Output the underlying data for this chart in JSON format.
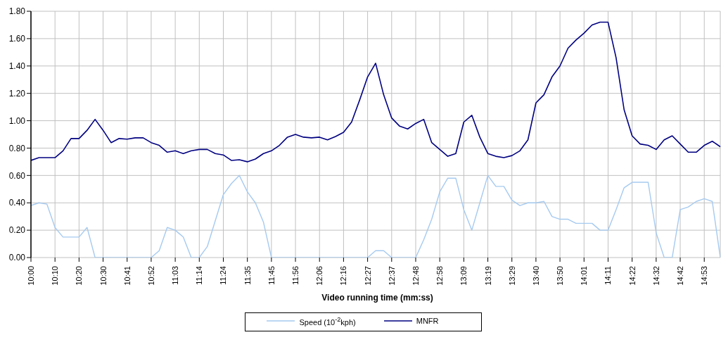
{
  "chart_data": {
    "type": "line",
    "xlabel": "Video running time (mm:ss)",
    "categories": [
      "10:00",
      null,
      null,
      "10:10",
      null,
      null,
      "10:20",
      null,
      null,
      "10:30",
      null,
      null,
      "10:41",
      null,
      null,
      "10:52",
      null,
      null,
      "11:03",
      null,
      null,
      "11:14",
      null,
      null,
      "11:24",
      null,
      null,
      "11:35",
      null,
      null,
      "11:45",
      null,
      null,
      "11:56",
      null,
      null,
      "12:06",
      null,
      null,
      "12:16",
      null,
      null,
      "12:27",
      null,
      null,
      "12:37",
      null,
      null,
      "12:48",
      null,
      null,
      "12:58",
      null,
      null,
      "13:09",
      null,
      null,
      "13:19",
      null,
      null,
      "13:29",
      null,
      null,
      "13:40",
      null,
      null,
      "13:50",
      null,
      null,
      "14:01",
      null,
      null,
      "14:11",
      null,
      null,
      "14:22",
      null,
      null,
      "14:32",
      null,
      null,
      "14:42",
      null,
      null,
      "14:53",
      null,
      null
    ],
    "series": [
      {
        "name": "Speed (10$^{-2}$kph)",
        "color": "#a6caf0",
        "values": [
          0.38,
          0.4,
          0.39,
          0.22,
          0.15,
          0.15,
          0.15,
          0.22,
          0,
          0,
          0,
          0,
          0,
          0,
          0,
          0,
          0.05,
          0.22,
          0.2,
          0.15,
          0,
          0,
          0.08,
          0.27,
          0.46,
          0.54,
          0.6,
          0.48,
          0.4,
          0.26,
          0,
          0,
          0,
          0,
          0,
          0,
          0,
          0,
          0,
          0,
          0,
          0,
          0,
          0.05,
          0.05,
          0,
          0,
          0,
          0,
          0.13,
          0.28,
          0.48,
          0.58,
          0.58,
          0.35,
          0.2,
          0.4,
          0.6,
          0.52,
          0.52,
          0.42,
          0.38,
          0.4,
          0.4,
          0.41,
          0.3,
          0.28,
          0.28,
          0.25,
          0.25,
          0.25,
          0.2,
          0.2,
          0.35,
          0.51,
          0.55,
          0.55,
          0.55,
          0.18,
          0,
          0,
          0.35,
          0.37,
          0.41,
          0.43,
          0.41,
          0
        ]
      },
      {
        "name": "MNFR",
        "color": "#000080",
        "values": [
          0.71,
          0.73,
          0.73,
          0.73,
          0.78,
          0.87,
          0.87,
          0.93,
          1.01,
          0.93,
          0.84,
          0.87,
          0.865,
          0.875,
          0.875,
          0.84,
          0.82,
          0.77,
          0.78,
          0.76,
          0.78,
          0.79,
          0.79,
          0.76,
          0.75,
          0.71,
          0.715,
          0.7,
          0.72,
          0.76,
          0.78,
          0.82,
          0.88,
          0.9,
          0.88,
          0.875,
          0.88,
          0.86,
          0.885,
          0.915,
          0.99,
          1.15,
          1.32,
          1.42,
          1.19,
          1.02,
          0.96,
          0.94,
          0.98,
          1.01,
          0.84,
          0.79,
          0.74,
          0.76,
          0.99,
          1.04,
          0.88,
          0.76,
          0.74,
          0.73,
          0.745,
          0.78,
          0.86,
          1.13,
          1.19,
          1.32,
          1.4,
          1.53,
          1.59,
          1.64,
          1.7,
          1.72,
          1.72,
          1.46,
          1.08,
          0.89,
          0.83,
          0.82,
          0.79,
          0.86,
          0.89,
          0.83,
          0.77,
          0.77,
          0.82,
          0.85,
          0.81
        ]
      }
    ],
    "ylim": [
      0,
      1.8
    ],
    "yticks": [
      {
        "value": 0,
        "label": "0.00"
      },
      {
        "value": 0.2,
        "label": "0.20"
      },
      {
        "value": 0.4,
        "label": "0.40"
      },
      {
        "value": 0.6,
        "label": "0.60"
      },
      {
        "value": 0.8,
        "label": "0.80"
      },
      {
        "value": 1.0,
        "label": "1.00"
      },
      {
        "value": 1.2,
        "label": "1.20"
      },
      {
        "value": 1.4,
        "label": "1.40"
      },
      {
        "value": 1.6,
        "label": "1.60"
      },
      {
        "value": 1.8,
        "label": "1.80"
      }
    ],
    "grid": true,
    "legend": "bottom",
    "marker": "none",
    "line_style": "solid"
  }
}
